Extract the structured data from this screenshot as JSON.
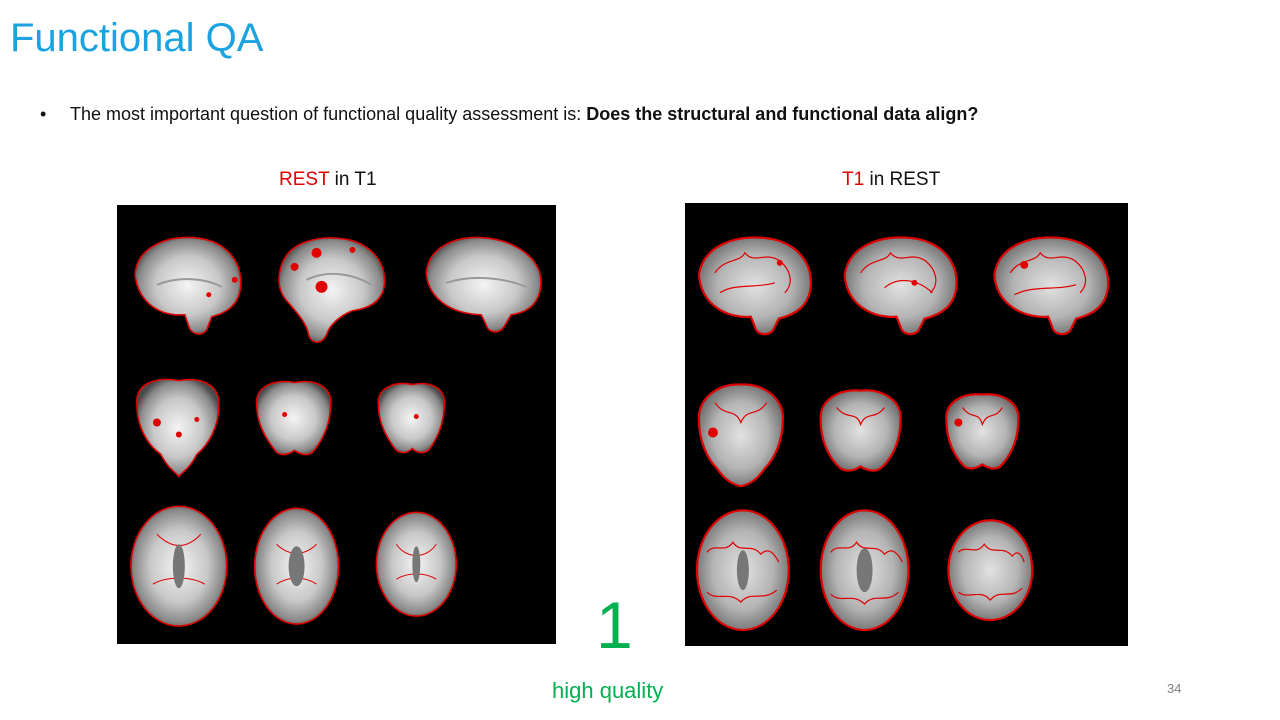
{
  "slide": {
    "title": "Functional QA",
    "bullet": {
      "symbol": "•",
      "text": "The most important question of functional quality assessment is: ",
      "bold": "Does the structural and functional data align?"
    },
    "left_panel": {
      "highlight": "REST",
      "rest": " in T1"
    },
    "right_panel": {
      "highlight": "T1",
      "rest": " in REST"
    },
    "score": "1",
    "score_label": "high quality",
    "page_number": "34"
  },
  "colors": {
    "title": "#1aa3e0",
    "highlight": "#e00000",
    "score": "#00b050",
    "overlay": "#e00000",
    "panel_bg": "#000000"
  },
  "images": {
    "left": {
      "description_icon": "brain-mri-montage-icon",
      "views": [
        "sagittal",
        "coronal",
        "axial"
      ]
    },
    "right": {
      "description_icon": "brain-mri-montage-icon",
      "views": [
        "sagittal",
        "coronal",
        "axial"
      ]
    }
  }
}
